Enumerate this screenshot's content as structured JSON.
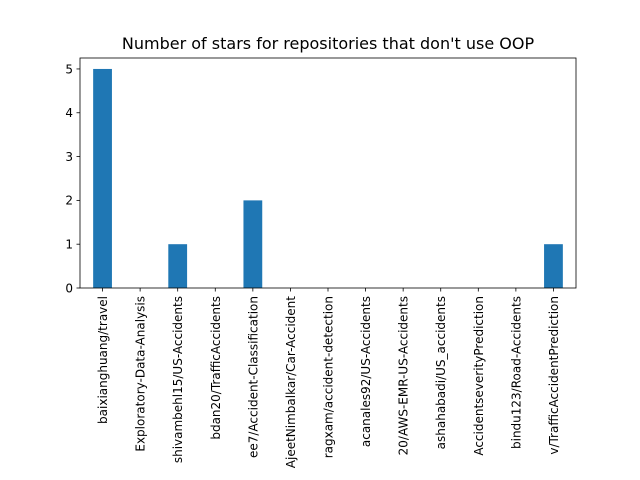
{
  "chart_data": {
    "type": "bar",
    "title": "Number of stars for repositories that don't use OOP",
    "xlabel": "",
    "ylabel": "",
    "categories": [
      "baixianghuang/travel",
      "Exploratory-Data-Analysis",
      "shivambehl15/US-Accidents",
      "bdan20/TrafficAccidents",
      "ee7/Accident-Classification",
      "AjeetNimbalkar/Car-Accident",
      "ragxam/accident-detection",
      "acanales92/US-Accidents",
      "20/AWS-EMR-US-Accidents",
      "ashahabadi/US_accidents",
      "AccidentseverityPrediction",
      "bindu123/Road-Accidents",
      "v/TrafficAccidentPrediction"
    ],
    "values": [
      5,
      0,
      1,
      0,
      2,
      0,
      0,
      0,
      0,
      0,
      0,
      0,
      1
    ],
    "ylim": [
      0,
      5.25
    ],
    "yticks": [
      0,
      1,
      2,
      3,
      4,
      5
    ],
    "bar_color": "#1f77b4",
    "grid": false,
    "legend": "none"
  }
}
